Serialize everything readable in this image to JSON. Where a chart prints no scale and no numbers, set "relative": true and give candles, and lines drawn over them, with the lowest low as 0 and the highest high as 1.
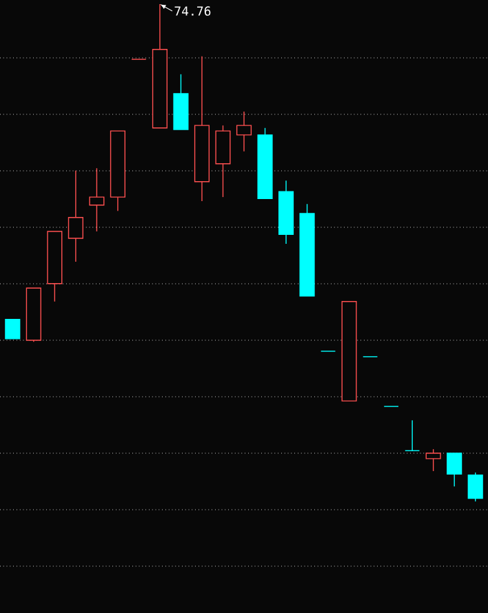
{
  "chart_data": {
    "type": "candlestick",
    "relative": true,
    "grid": "y",
    "categories": [
      null,
      null,
      null,
      null,
      null,
      null,
      null,
      null,
      null,
      null,
      null,
      null,
      null,
      null,
      null,
      null,
      null,
      null,
      null,
      null,
      null,
      null,
      null
    ],
    "ohlc": [
      [
        0.366,
        0.366,
        0.327,
        0.327
      ],
      [
        0.324,
        0.429,
        0.321,
        0.429
      ],
      [
        0.438,
        0.543,
        0.402,
        0.543
      ],
      [
        0.529,
        0.665,
        0.482,
        0.571
      ],
      [
        0.596,
        0.67,
        0.543,
        0.612
      ],
      [
        0.612,
        0.745,
        0.584,
        0.745
      ],
      [
        0.889,
        0.889,
        0.889,
        0.889
      ],
      [
        0.751,
        1,
        0.751,
        0.909
      ],
      [
        0.82,
        0.859,
        0.748,
        0.748
      ],
      [
        0.643,
        0.895,
        0.604,
        0.756
      ],
      [
        0.679,
        0.756,
        0.612,
        0.745
      ],
      [
        0.737,
        0.784,
        0.704,
        0.756
      ],
      [
        0.737,
        0.751,
        0.609,
        0.609
      ],
      [
        0.623,
        0.645,
        0.518,
        0.537
      ],
      [
        0.579,
        0.598,
        0.413,
        0.413
      ],
      [
        0.302,
        0.302,
        0.302,
        0.302
      ],
      [
        0.202,
        0.402,
        0.202,
        0.402
      ],
      [
        0.291,
        0.291,
        0.291,
        0.291
      ],
      [
        0.191,
        0.191,
        0.191,
        0.191
      ],
      [
        0.102,
        0.163,
        0.102,
        0.102
      ],
      [
        0.086,
        0.105,
        0.061,
        0.097
      ],
      [
        0.097,
        0.097,
        0.03,
        0.055
      ],
      [
        0.053,
        0.058,
        0,
        0.006
      ]
    ],
    "colors": [
      "#00ffff",
      "#ff5050",
      "#ff5050",
      "#ff5050",
      "#ff5050",
      "#ff5050",
      "#ff5050",
      "#ff5050",
      "#00ffff",
      "#ff5050",
      "#ff5050",
      "#ff5050",
      "#00ffff",
      "#00ffff",
      "#00ffff",
      "#00ffff",
      "#ff5050",
      "#00ffff",
      "#00ffff",
      "#00ffff",
      "#ff5050",
      "#00ffff",
      "#00ffff"
    ],
    "annotations": [
      "74.76"
    ]
  }
}
